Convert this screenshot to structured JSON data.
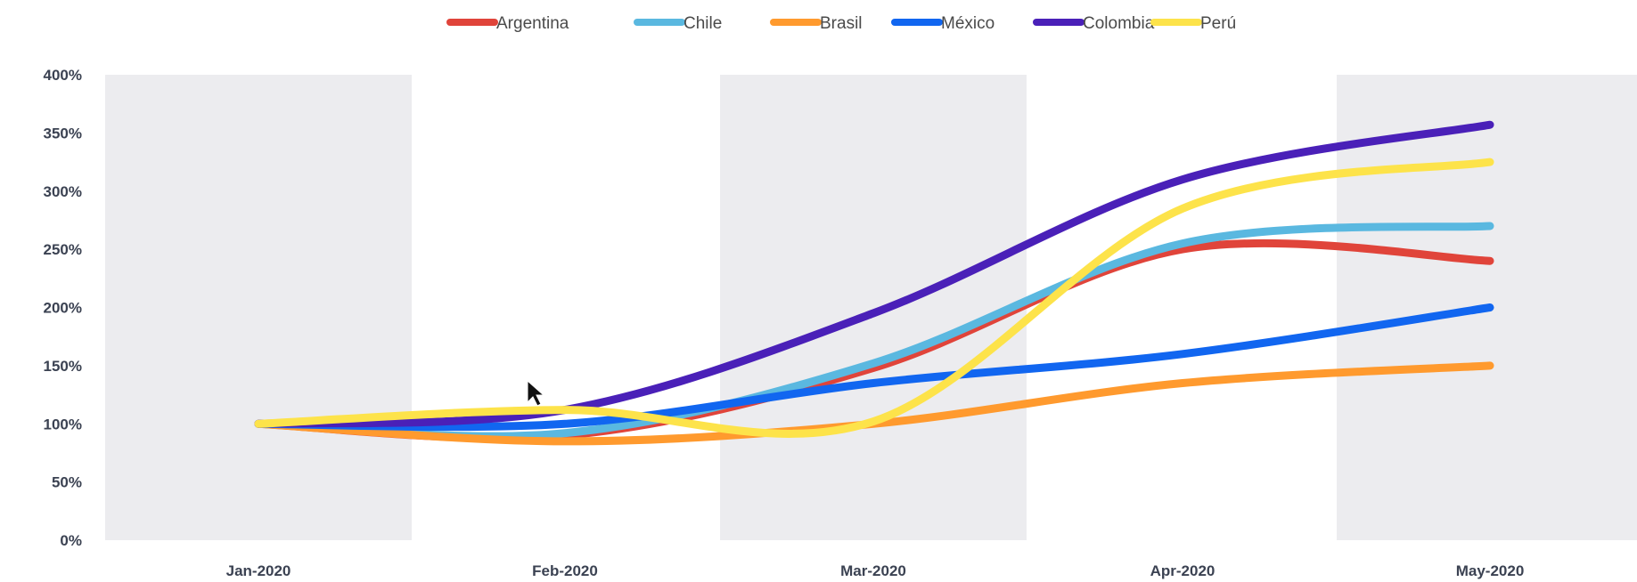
{
  "chart_data": {
    "type": "line",
    "title": "",
    "xlabel": "",
    "ylabel": "",
    "categories": [
      "Jan-2020",
      "Feb-2020",
      "Mar-2020",
      "Apr-2020",
      "May-2020"
    ],
    "y_ticks": [
      "0%",
      "50%",
      "100%",
      "150%",
      "200%",
      "250%",
      "300%",
      "350%",
      "400%"
    ],
    "ylim": [
      0,
      400
    ],
    "y_unit": "%",
    "legend_position": "top-center",
    "alternating_column_bands": true,
    "series": [
      {
        "name": "Argentina",
        "color": "#e0443a",
        "values": [
          100,
          90,
          148,
          250,
          240
        ]
      },
      {
        "name": "Chile",
        "color": "#5ab8e0",
        "values": [
          100,
          92,
          152,
          255,
          270
        ]
      },
      {
        "name": "Brasil",
        "color": "#ff9a2e",
        "values": [
          100,
          85,
          100,
          135,
          150
        ]
      },
      {
        "name": "México",
        "color": "#1166f0",
        "values": [
          100,
          100,
          135,
          160,
          200
        ]
      },
      {
        "name": "Colombia",
        "color": "#4a20b8",
        "values": [
          100,
          112,
          195,
          310,
          357
        ]
      },
      {
        "name": "Perú",
        "color": "#fde34a",
        "values": [
          100,
          112,
          102,
          285,
          325
        ]
      }
    ]
  }
}
